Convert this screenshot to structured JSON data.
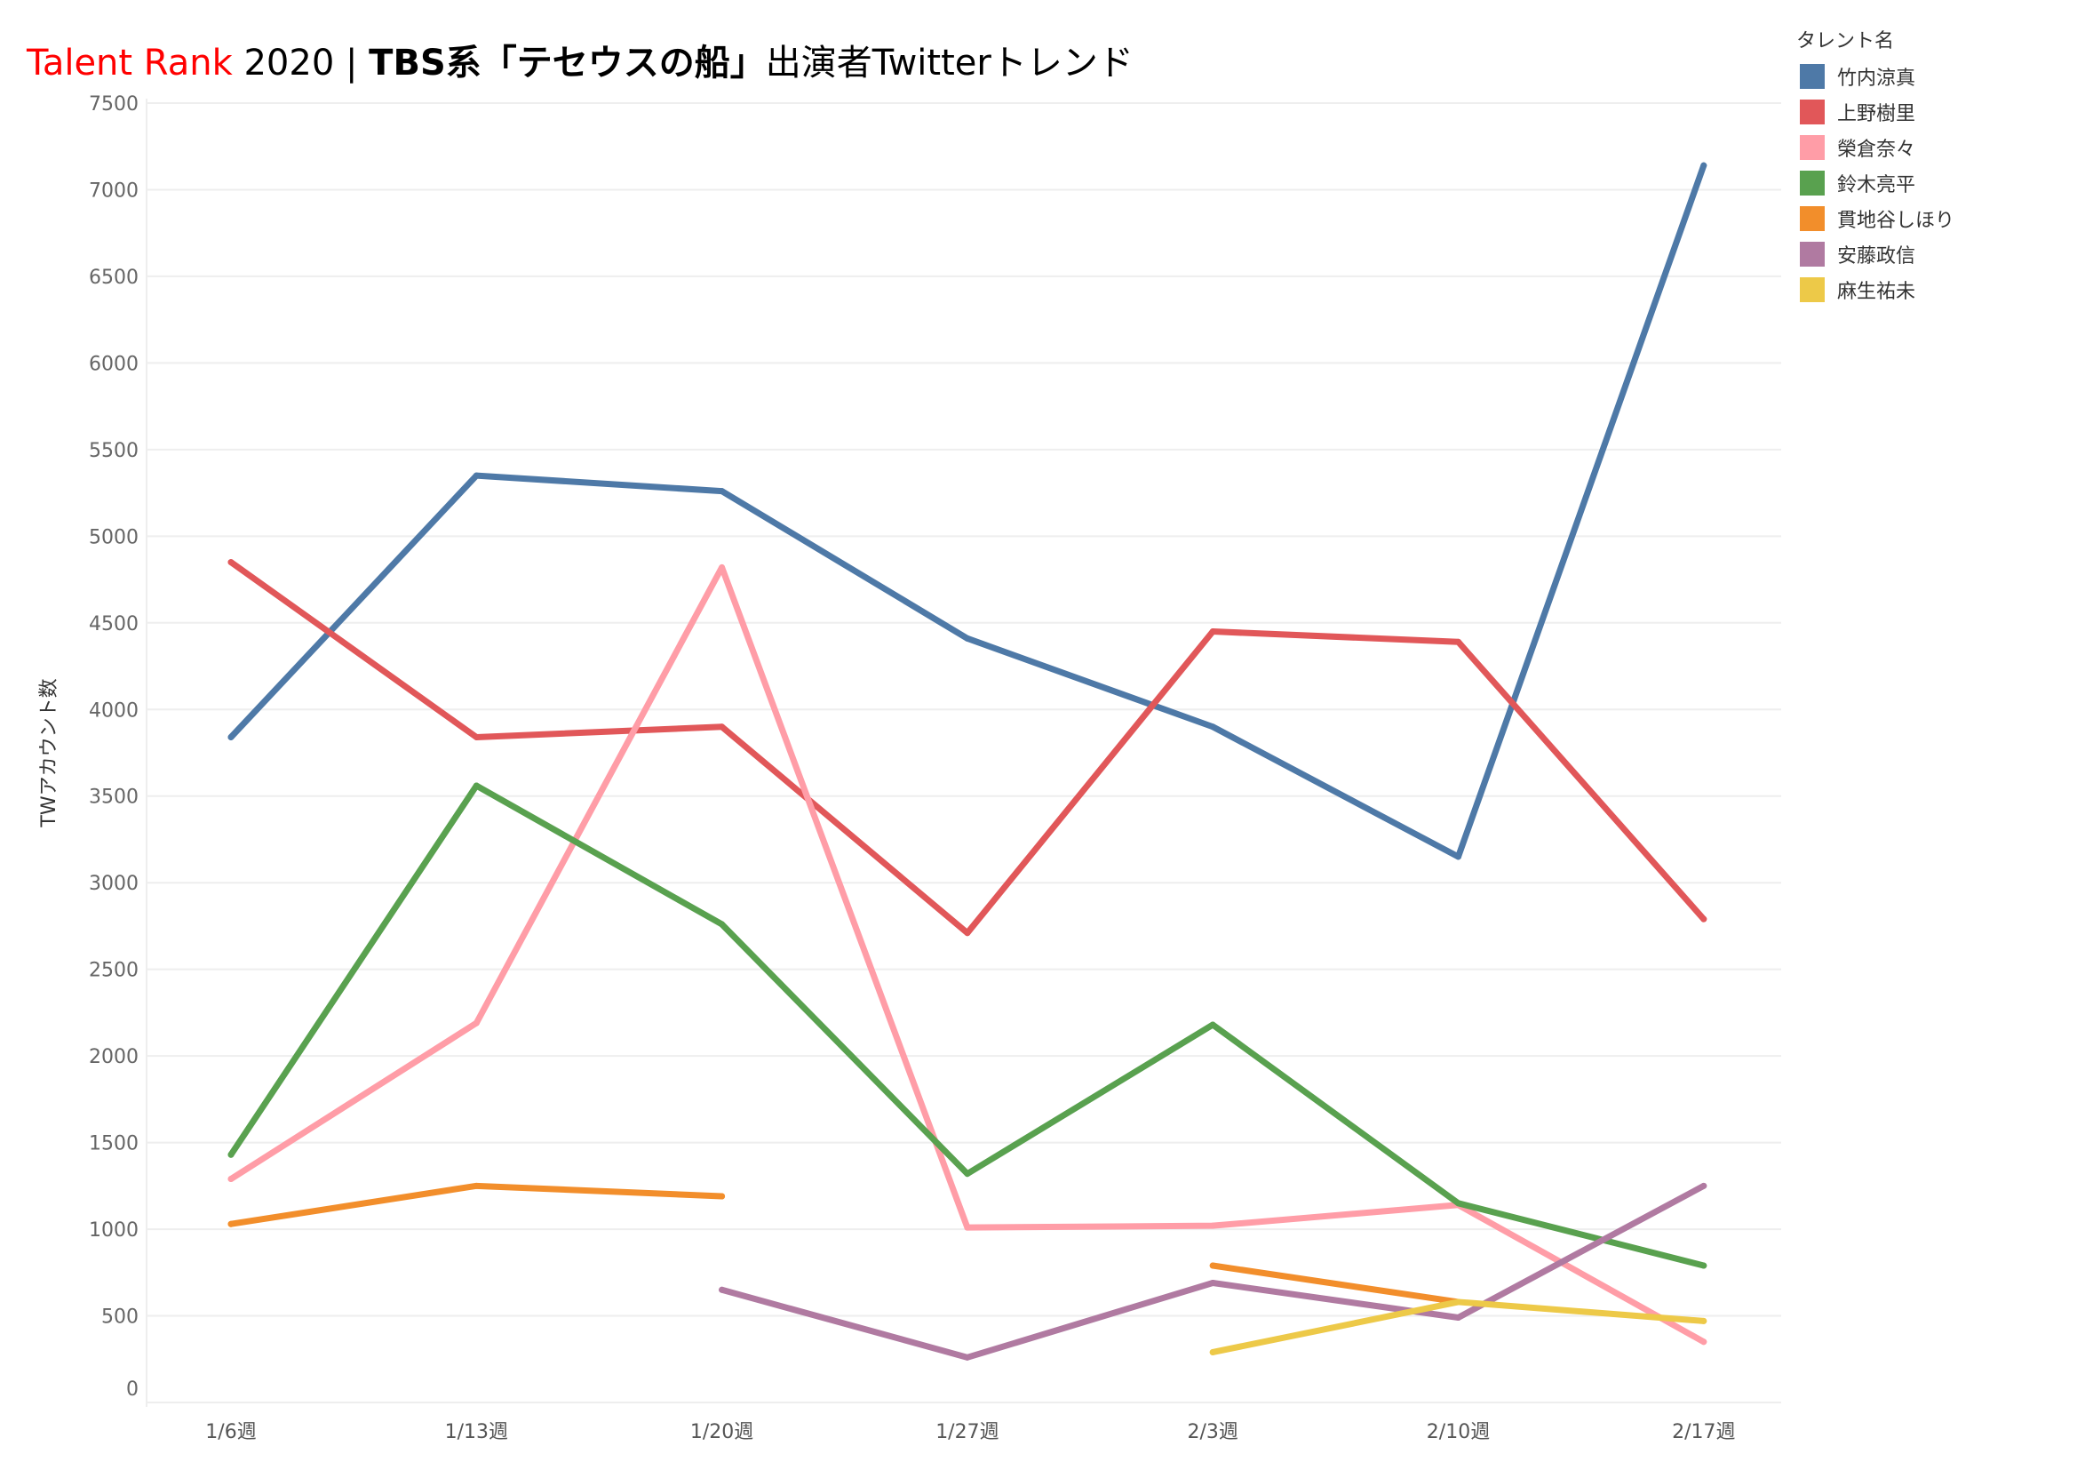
{
  "title": {
    "brand": "Talent Rank",
    "year": " 2020 | ",
    "show": "TBS系「テセウスの船」",
    "rest": "出演者Twitterトレンド"
  },
  "legend": {
    "title": "タレント名"
  },
  "chart_data": {
    "type": "line",
    "title": "Talent Rank 2020 | TBS系「テセウスの船」出演者Twitterトレンド",
    "xlabel": "",
    "ylabel": "TWアカウント数",
    "ylim": [
      0,
      7500
    ],
    "yticks": [
      0,
      500,
      1000,
      1500,
      2000,
      2500,
      3000,
      3500,
      4000,
      4500,
      5000,
      5500,
      6000,
      6500,
      7000,
      7500
    ],
    "grid": true,
    "legend_position": "top-right",
    "categories": [
      "1/6週",
      "1/13週",
      "1/20週",
      "1/27週",
      "2/3週",
      "2/10週",
      "2/17週"
    ],
    "series": [
      {
        "name": "竹内涼真",
        "color": "#4e79a7",
        "values": [
          3840,
          5350,
          5260,
          4410,
          3900,
          3150,
          7140
        ]
      },
      {
        "name": "上野樹里",
        "color": "#e15759",
        "values": [
          4850,
          3840,
          3900,
          2710,
          4450,
          4390,
          2790
        ]
      },
      {
        "name": "榮倉奈々",
        "color": "#ff9da7",
        "values": [
          1290,
          2190,
          4820,
          1010,
          1020,
          1140,
          350
        ]
      },
      {
        "name": "鈴木亮平",
        "color": "#59a14f",
        "values": [
          1430,
          3560,
          2760,
          1320,
          2180,
          1150,
          790
        ]
      },
      {
        "name": "貫地谷しほり",
        "color": "#f28e2b",
        "values": [
          1030,
          1250,
          1190,
          null,
          790,
          580,
          null
        ]
      },
      {
        "name": "安藤政信",
        "color": "#b07aa1",
        "values": [
          null,
          null,
          650,
          260,
          690,
          490,
          1250
        ]
      },
      {
        "name": "麻生祐未",
        "color": "#edc948",
        "values": [
          null,
          null,
          null,
          null,
          290,
          580,
          470
        ]
      }
    ]
  }
}
